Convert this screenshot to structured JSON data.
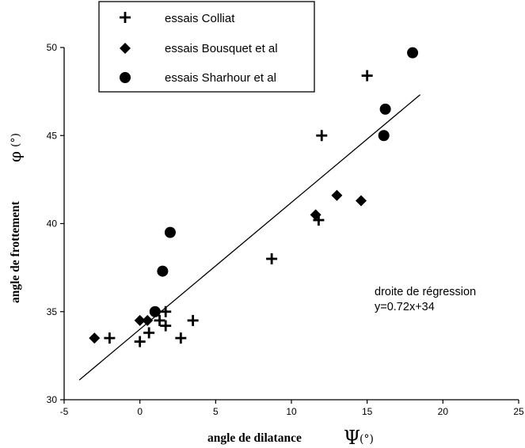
{
  "chart_data": {
    "type": "scatter",
    "xlim": [
      -5,
      25
    ],
    "ylim": [
      30,
      50
    ],
    "x_ticks": [
      -5,
      0,
      5,
      10,
      15,
      20,
      25
    ],
    "y_ticks": [
      30,
      35,
      40,
      45,
      50
    ],
    "grid": false,
    "legend_position": "top-left",
    "xlabel": {
      "text": "angle de dilatance",
      "symbol": "Ψ",
      "unit": "(°)"
    },
    "ylabel": {
      "text": "angle de frottement",
      "symbol": "φ",
      "unit": "(°)"
    },
    "series": [
      {
        "name": "essais Colliat",
        "marker": "plus",
        "points": [
          [
            -2,
            33.5
          ],
          [
            0,
            33.3
          ],
          [
            0.6,
            33.8
          ],
          [
            1.3,
            34.5
          ],
          [
            1.7,
            34.2
          ],
          [
            1.7,
            35
          ],
          [
            2.7,
            33.5
          ],
          [
            3.5,
            34.5
          ],
          [
            8.7,
            38
          ],
          [
            11.8,
            40.2
          ],
          [
            12,
            45
          ],
          [
            15,
            48.4
          ]
        ]
      },
      {
        "name": "essais Bousquet et al",
        "marker": "diamond",
        "points": [
          [
            -3,
            33.5
          ],
          [
            0,
            34.5
          ],
          [
            0.5,
            34.5
          ],
          [
            11.6,
            40.5
          ],
          [
            13,
            41.6
          ],
          [
            14.6,
            41.3
          ]
        ]
      },
      {
        "name": "essais Sharhour et al",
        "marker": "circle",
        "points": [
          [
            1,
            35
          ],
          [
            1.5,
            37.3
          ],
          [
            2,
            39.5
          ],
          [
            16.1,
            45
          ],
          [
            16.2,
            46.5
          ],
          [
            18,
            49.7
          ]
        ]
      }
    ],
    "regression": {
      "slope": 0.72,
      "intercept": 34,
      "x_range": [
        -4,
        18.5
      ]
    },
    "annotations": [
      "droite de régression",
      "y=0.72x+34"
    ]
  }
}
